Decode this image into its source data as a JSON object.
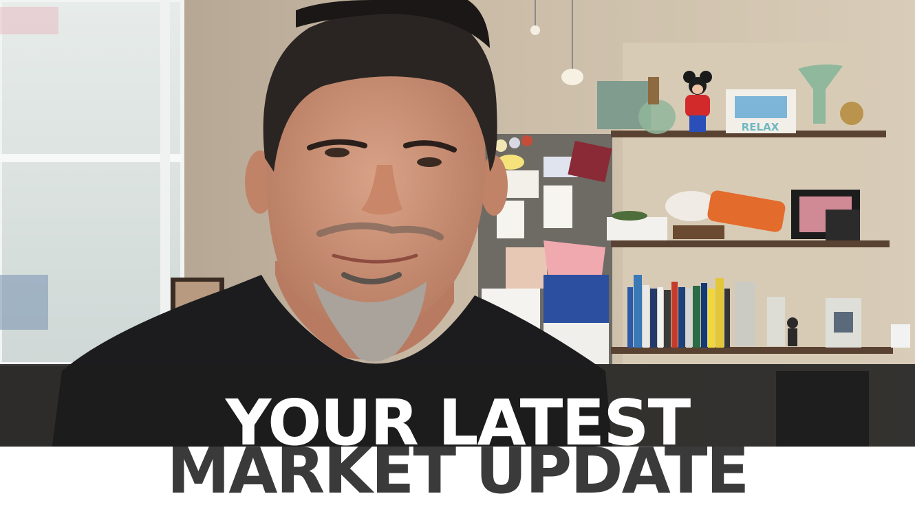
{
  "scene": {
    "colors": {
      "wall": "#cdbfa8",
      "frosted_panel": "#dfe6e4",
      "shirt": "#1c1c1e",
      "skin": "#c98f74",
      "hair": "#2a2522",
      "beard": "#a9a39c",
      "shelf": "#5a4232",
      "corkboard": "#6e6a64",
      "banner": "#1c1c1c"
    }
  },
  "title": {
    "line1": "YOUR LATEST",
    "line2": "MARKET UPDATE"
  },
  "shelf_sign": "RELAX"
}
